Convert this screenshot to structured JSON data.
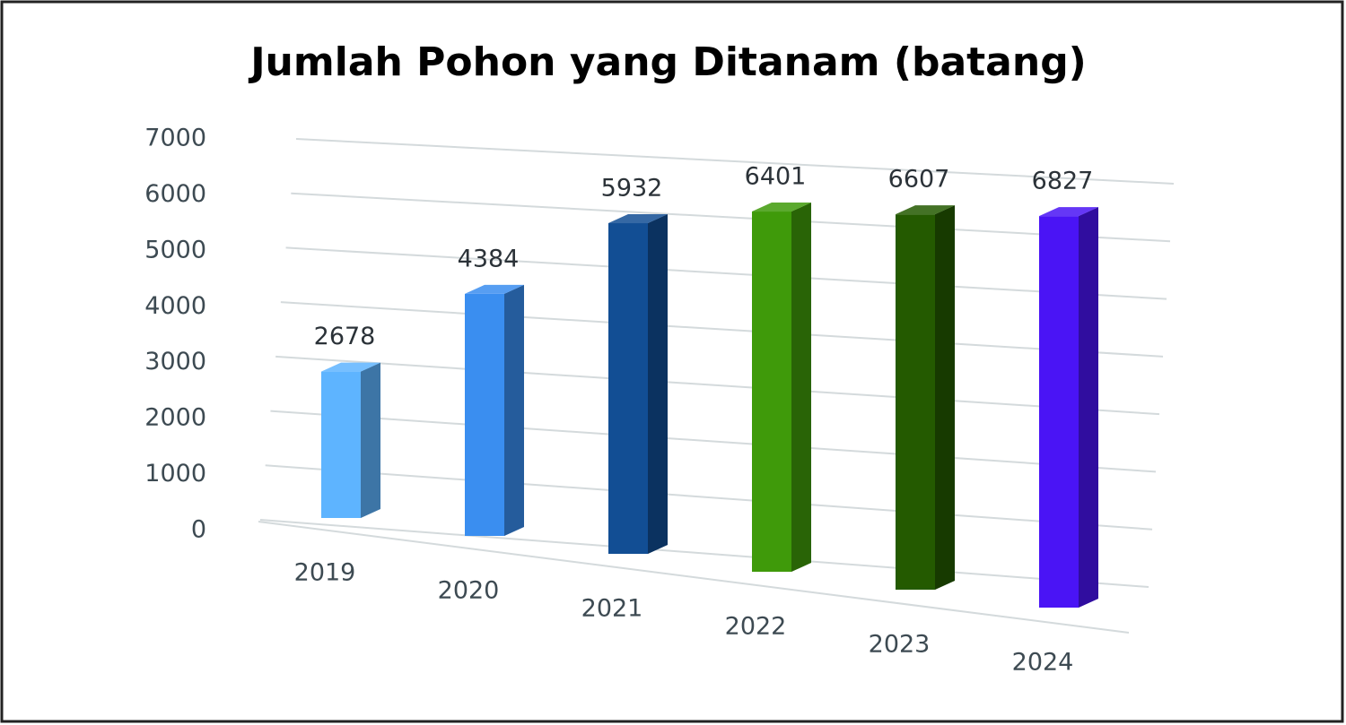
{
  "chart_data": {
    "type": "bar3d",
    "title": "Jumlah Pohon yang Ditanam (batang)",
    "categories": [
      "2019",
      "2020",
      "2021",
      "2022",
      "2023",
      "2024"
    ],
    "values": [
      2678,
      4384,
      5932,
      6401,
      6607,
      6827
    ],
    "colors": [
      "#5eb4ff",
      "#3a8ef0",
      "#124e94",
      "#3f9a0a",
      "#245a00",
      "#4a14f5"
    ],
    "ylim": [
      0,
      7000
    ],
    "yticks": [
      0,
      1000,
      2000,
      3000,
      4000,
      5000,
      6000,
      7000
    ],
    "grid": true
  }
}
